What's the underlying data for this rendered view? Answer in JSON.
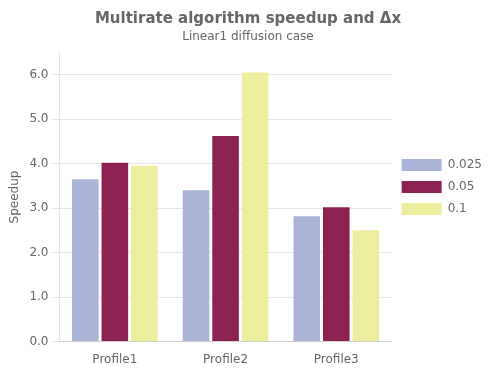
{
  "chart_data": {
    "type": "bar",
    "title": "Multirate algorithm speedup and Δx",
    "subtitle": "Linear1 diffusion case",
    "ylabel": "Speedup",
    "categories": [
      "Profile1",
      "Profile2",
      "Profile3"
    ],
    "series": [
      {
        "name": "0.025",
        "color": "#aab4d8",
        "values": [
          3.65,
          3.4,
          2.82
        ]
      },
      {
        "name": "0.05",
        "color": "#8b2252",
        "values": [
          4.02,
          4.62,
          3.02
        ]
      },
      {
        "name": "0.1",
        "color": "#eded9e",
        "values": [
          3.95,
          6.05,
          2.5
        ]
      }
    ],
    "ylim": [
      0.0,
      6.5
    ],
    "yticks": [
      {
        "value": 0,
        "label": "0.0"
      },
      {
        "value": 1,
        "label": "1.0"
      },
      {
        "value": 2,
        "label": "2.0"
      },
      {
        "value": 3,
        "label": "3.0"
      },
      {
        "value": 4,
        "label": "4.0"
      },
      {
        "value": 5,
        "label": "5.0"
      },
      {
        "value": 6,
        "label": "6.0"
      }
    ],
    "grid": true,
    "legend": "right"
  }
}
